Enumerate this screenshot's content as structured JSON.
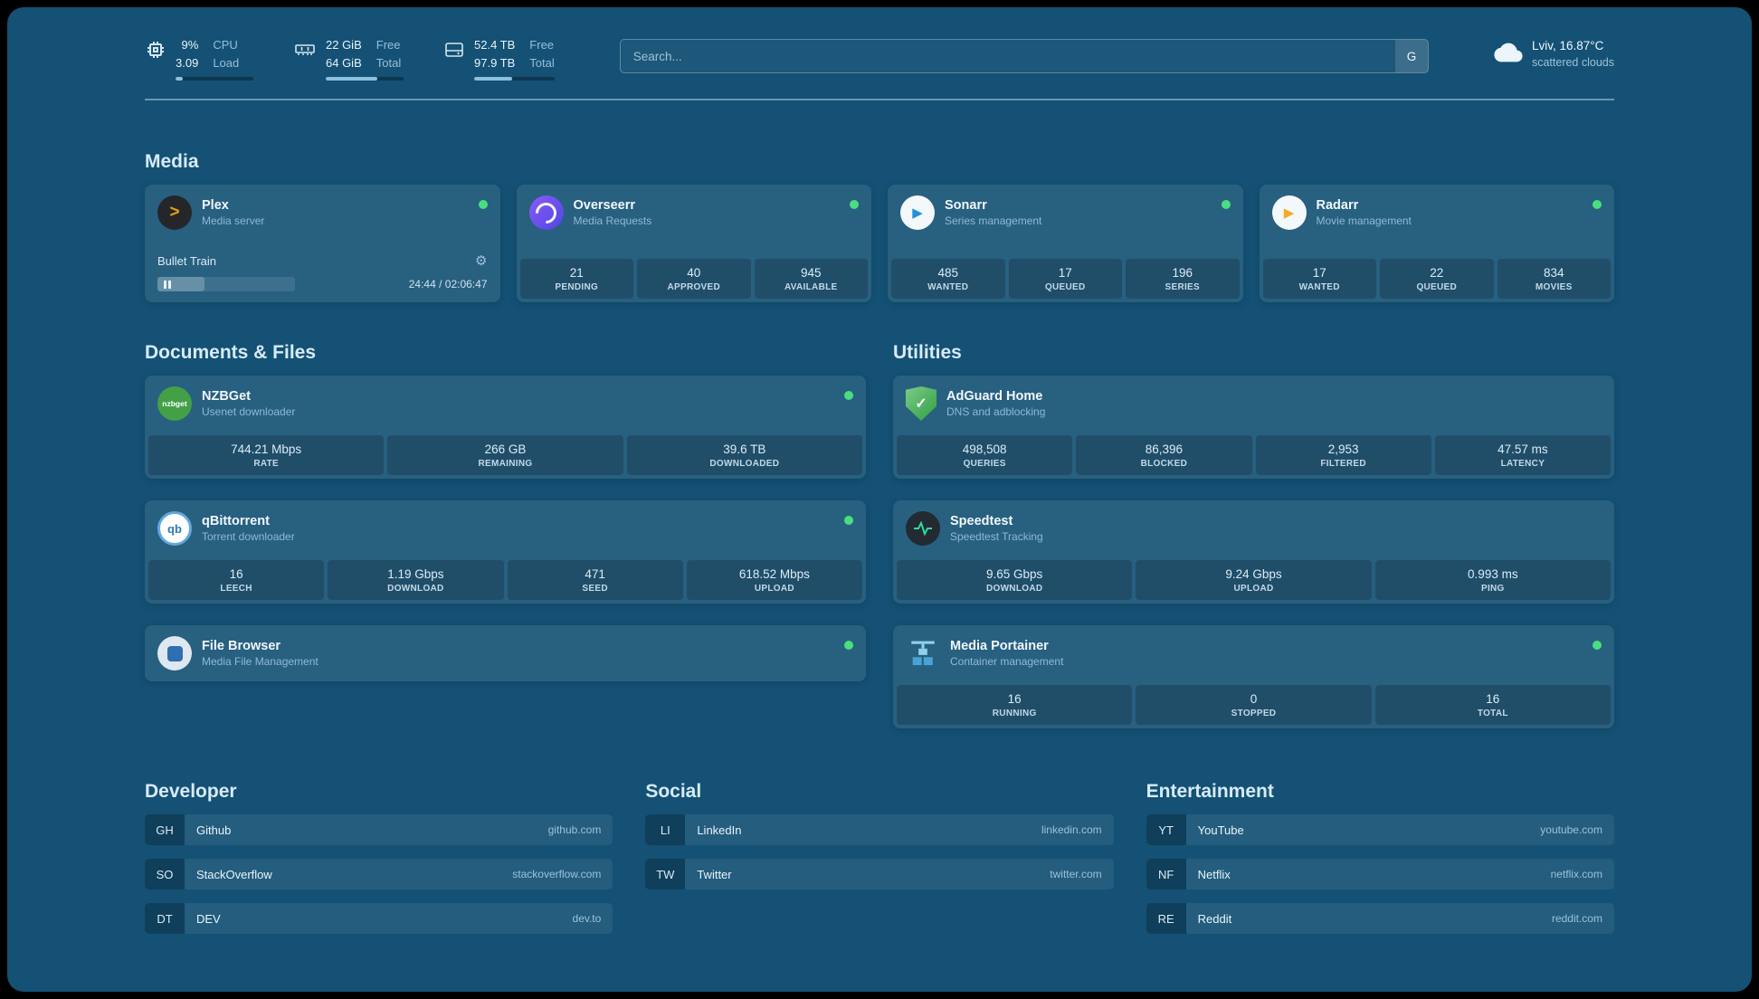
{
  "topbar": {
    "cpu": {
      "value1": "9%",
      "value2": "3.09",
      "label1": "CPU",
      "label2": "Load",
      "bar_percent": 9
    },
    "memory": {
      "value1": "22 GiB",
      "value2": "64 GiB",
      "label1": "Free",
      "label2": "Total",
      "bar_percent": 66
    },
    "disk": {
      "value1": "52.4 TB",
      "value2": "97.9 TB",
      "label1": "Free",
      "label2": "Total",
      "bar_percent": 47
    },
    "search": {
      "placeholder": "Search...",
      "provider_letter": "G"
    },
    "weather": {
      "location": "Lviv, 16.87°C",
      "condition": "scattered clouds"
    }
  },
  "sections": {
    "media": {
      "title": "Media",
      "plex": {
        "name": "Plex",
        "subtitle": "Media server",
        "now_playing": "Bullet Train",
        "time": "24:44 / 02:06:47"
      },
      "overseerr": {
        "name": "Overseerr",
        "subtitle": "Media Requests",
        "stats": [
          {
            "value": "21",
            "label": "PENDING"
          },
          {
            "value": "40",
            "label": "APPROVED"
          },
          {
            "value": "945",
            "label": "AVAILABLE"
          }
        ]
      },
      "sonarr": {
        "name": "Sonarr",
        "subtitle": "Series management",
        "stats": [
          {
            "value": "485",
            "label": "WANTED"
          },
          {
            "value": "17",
            "label": "QUEUED"
          },
          {
            "value": "196",
            "label": "SERIES"
          }
        ]
      },
      "radarr": {
        "name": "Radarr",
        "subtitle": "Movie management",
        "stats": [
          {
            "value": "17",
            "label": "WANTED"
          },
          {
            "value": "22",
            "label": "QUEUED"
          },
          {
            "value": "834",
            "label": "MOVIES"
          }
        ]
      }
    },
    "documents": {
      "title": "Documents & Files",
      "nzbget": {
        "name": "NZBGet",
        "subtitle": "Usenet downloader",
        "icon_text": "nzbget",
        "stats": [
          {
            "value": "744.21 Mbps",
            "label": "RATE"
          },
          {
            "value": "266 GB",
            "label": "REMAINING"
          },
          {
            "value": "39.6 TB",
            "label": "DOWNLOADED"
          }
        ]
      },
      "qbittorrent": {
        "name": "qBittorrent",
        "subtitle": "Torrent downloader",
        "icon_text": "qb",
        "stats": [
          {
            "value": "16",
            "label": "LEECH"
          },
          {
            "value": "1.19 Gbps",
            "label": "DOWNLOAD"
          },
          {
            "value": "471",
            "label": "SEED"
          },
          {
            "value": "618.52 Mbps",
            "label": "UPLOAD"
          }
        ]
      },
      "filebrowser": {
        "name": "File Browser",
        "subtitle": "Media File Management"
      }
    },
    "utilities": {
      "title": "Utilities",
      "adguard": {
        "name": "AdGuard Home",
        "subtitle": "DNS and adblocking",
        "icon_glyph": "✓",
        "stats": [
          {
            "value": "498,508",
            "label": "QUERIES"
          },
          {
            "value": "86,396",
            "label": "BLOCKED"
          },
          {
            "value": "2,953",
            "label": "FILTERED"
          },
          {
            "value": "47.57 ms",
            "label": "LATENCY"
          }
        ]
      },
      "speedtest": {
        "name": "Speedtest",
        "subtitle": "Speedtest Tracking",
        "stats": [
          {
            "value": "9.65 Gbps",
            "label": "DOWNLOAD"
          },
          {
            "value": "9.24 Gbps",
            "label": "UPLOAD"
          },
          {
            "value": "0.993 ms",
            "label": "PING"
          }
        ]
      },
      "portainer": {
        "name": "Media Portainer",
        "subtitle": "Container management",
        "stats": [
          {
            "value": "16",
            "label": "RUNNING"
          },
          {
            "value": "0",
            "label": "STOPPED"
          },
          {
            "value": "16",
            "label": "TOTAL"
          }
        ]
      }
    },
    "bookmarks": {
      "developer": {
        "title": "Developer",
        "items": [
          {
            "abbr": "GH",
            "name": "Github",
            "domain": "github.com"
          },
          {
            "abbr": "SO",
            "name": "StackOverflow",
            "domain": "stackoverflow.com"
          },
          {
            "abbr": "DT",
            "name": "DEV",
            "domain": "dev.to"
          }
        ]
      },
      "social": {
        "title": "Social",
        "items": [
          {
            "abbr": "LI",
            "name": "LinkedIn",
            "domain": "linkedin.com"
          },
          {
            "abbr": "TW",
            "name": "Twitter",
            "domain": "twitter.com"
          }
        ]
      },
      "entertainment": {
        "title": "Entertainment",
        "items": [
          {
            "abbr": "YT",
            "name": "YouTube",
            "domain": "youtube.com"
          },
          {
            "abbr": "NF",
            "name": "Netflix",
            "domain": "netflix.com"
          },
          {
            "abbr": "RE",
            "name": "Reddit",
            "domain": "reddit.com"
          }
        ]
      }
    }
  },
  "colors": {
    "status_green": "#4ade80",
    "plex_amber": "#e5a00d"
  }
}
